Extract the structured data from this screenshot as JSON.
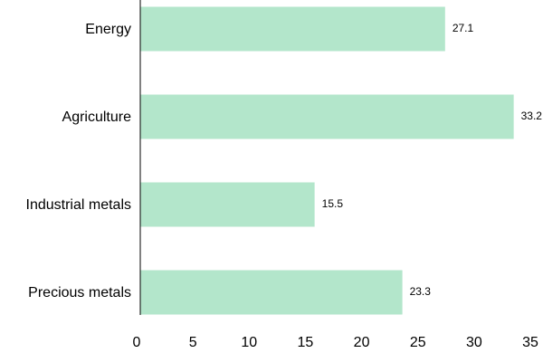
{
  "chart_data": {
    "type": "bar",
    "orientation": "horizontal",
    "categories": [
      "Energy",
      "Agriculture",
      "Industrial metals",
      "Precious metals"
    ],
    "values": [
      27.1,
      33.2,
      15.5,
      23.3
    ],
    "value_labels": [
      "27.1",
      "33.2",
      "15.5",
      "23.3"
    ],
    "xlim": [
      0,
      35
    ],
    "xticks": [
      0,
      5,
      10,
      15,
      20,
      25,
      30,
      35
    ],
    "xtick_labels": [
      "0",
      "5",
      "10",
      "15",
      "20",
      "25",
      "30",
      "35"
    ],
    "title": "",
    "xlabel": "",
    "ylabel": "",
    "grid": false,
    "legend": false
  },
  "colors": {
    "bar": "#b3e6cb",
    "axis": "#000000",
    "text": "#000000"
  }
}
